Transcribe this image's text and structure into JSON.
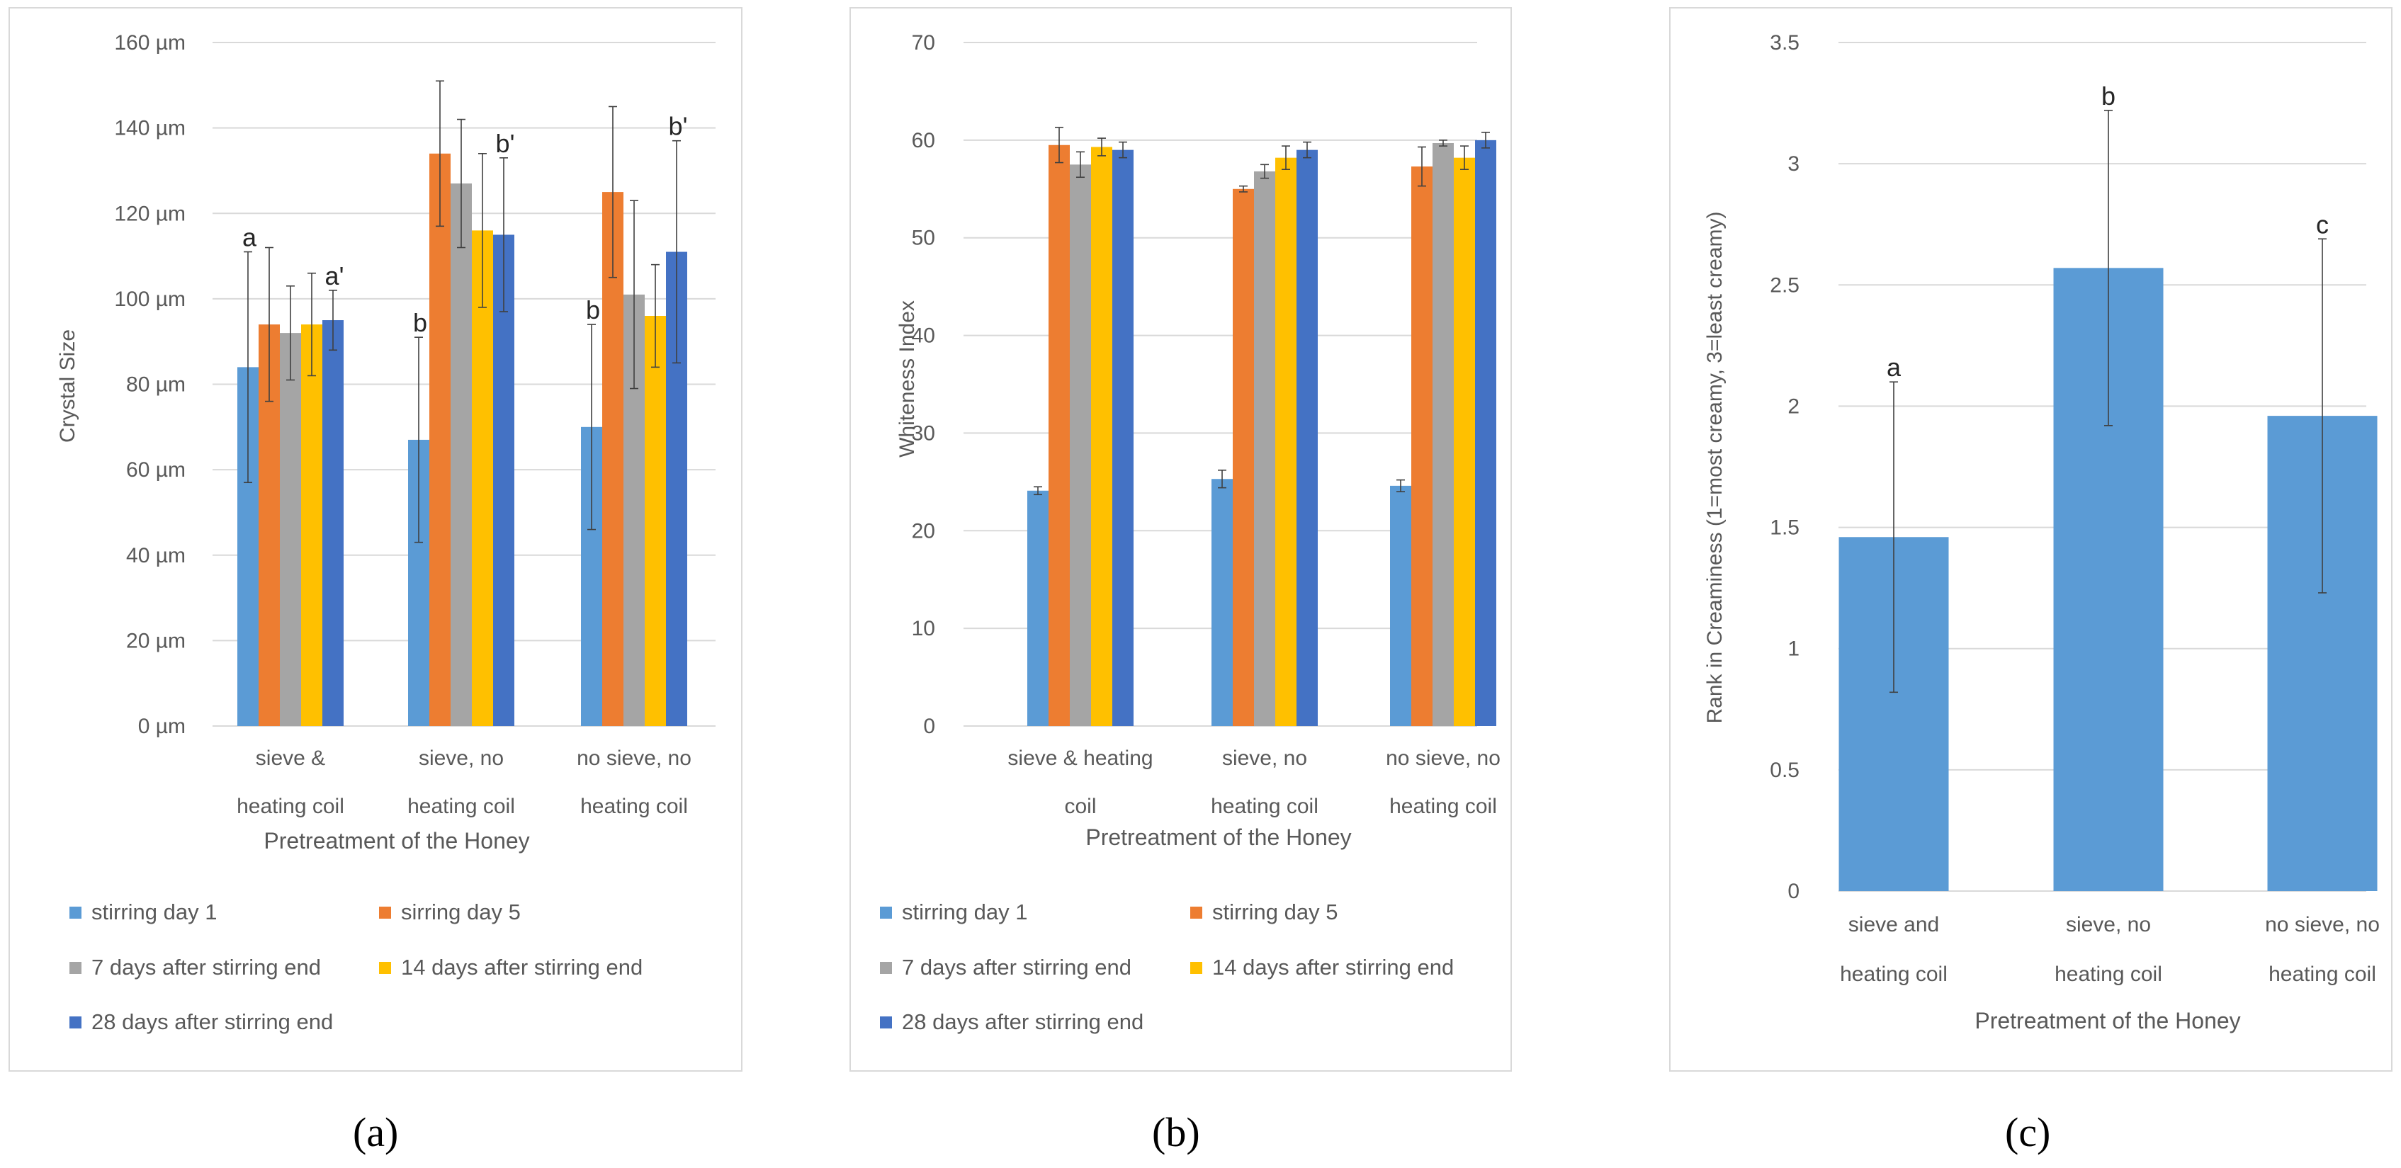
{
  "colors": {
    "s1": "#5b9bd5",
    "s2": "#ed7d31",
    "s3": "#a5a5a5",
    "s4": "#ffc000",
    "s5": "#4472c4",
    "grid": "#d9d9d9",
    "text": "#595959",
    "err": "#404040"
  },
  "captions": [
    "(a)",
    "(b)",
    "(c)"
  ],
  "chart_data": [
    {
      "type": "bar",
      "ylabel": "Crystal Size",
      "xlabel": "Pretreatment  of the Honey",
      "ylim": [
        0,
        160
      ],
      "yticks": [
        "0 µm",
        "20 µm",
        "40 µm",
        "60 µm",
        "80 µm",
        "100 µm",
        "120 µm",
        "140 µm",
        "160 µm"
      ],
      "categories": [
        [
          "sieve &",
          "heating coil"
        ],
        [
          "sieve, no",
          "heating coil"
        ],
        [
          "no sieve, no",
          "heating coil"
        ]
      ],
      "series": [
        {
          "name": "stirring day 1",
          "values": [
            84,
            67,
            70
          ],
          "err": [
            27,
            24,
            24
          ]
        },
        {
          "name": "sirring day 5",
          "values": [
            94,
            134,
            125
          ],
          "err": [
            18,
            17,
            20
          ]
        },
        {
          "name": "7 days after stirring end",
          "values": [
            92,
            127,
            101
          ],
          "err": [
            11,
            15,
            22
          ]
        },
        {
          "name": "14 days after stirring end",
          "values": [
            94,
            116,
            96
          ],
          "err": [
            12,
            18,
            12
          ]
        },
        {
          "name": "28 days after stirring end",
          "values": [
            95,
            115,
            111
          ],
          "err": [
            7,
            18,
            26
          ]
        }
      ],
      "annotations": [
        {
          "series": 0,
          "category": 0,
          "text": "a"
        },
        {
          "series": 4,
          "category": 0,
          "text": "a'"
        },
        {
          "series": 0,
          "category": 1,
          "text": "b"
        },
        {
          "series": 4,
          "category": 1,
          "text": "b'"
        },
        {
          "series": 0,
          "category": 2,
          "text": "b"
        },
        {
          "series": 4,
          "category": 2,
          "text": "b'"
        }
      ],
      "legend": [
        "stirring day 1",
        "sirring day 5",
        "7 days after stirring end",
        "14 days after stirring end",
        "28 days after stirring end"
      ]
    },
    {
      "type": "bar",
      "ylabel": "Whiteness Index",
      "xlabel": "Pretreatment  of the Honey",
      "ylim": [
        0,
        70
      ],
      "yticks": [
        "0",
        "10",
        "20",
        "30",
        "40",
        "50",
        "60",
        "70"
      ],
      "categories": [
        [
          "sieve & heating",
          "coil"
        ],
        [
          "sieve, no",
          "heating coil"
        ],
        [
          "no sieve, no",
          "heating coil"
        ]
      ],
      "series": [
        {
          "name": "stirring day 1",
          "values": [
            24.1,
            25.3,
            24.6
          ],
          "err": [
            0.4,
            0.9,
            0.6
          ]
        },
        {
          "name": "stirring day 5",
          "values": [
            59.5,
            55.0,
            57.3
          ],
          "err": [
            1.8,
            0.3,
            2.0
          ]
        },
        {
          "name": "7 days after stirring end",
          "values": [
            57.5,
            56.8,
            59.7
          ],
          "err": [
            1.3,
            0.7,
            0.3
          ]
        },
        {
          "name": "14 days after stirring end",
          "values": [
            59.3,
            58.2,
            58.2
          ],
          "err": [
            0.9,
            1.2,
            1.2
          ]
        },
        {
          "name": "28 days after stirring end",
          "values": [
            59.0,
            59.0,
            60.0
          ],
          "err": [
            0.8,
            0.8,
            0.8
          ]
        }
      ],
      "legend": [
        "stirring day 1",
        "stirring day 5",
        "7 days after stirring end",
        "14 days after stirring end",
        "28 days after stirring end"
      ]
    },
    {
      "type": "bar",
      "ylabel": "Rank in Creaminess (1=most creamy, 3=least creamy)",
      "xlabel": "Pretreatment  of the Honey",
      "ylim": [
        0,
        3.5
      ],
      "yticks": [
        "0",
        "0.5",
        "1",
        "1.5",
        "2",
        "2.5",
        "3",
        "3.5"
      ],
      "categories": [
        [
          "sieve and",
          "heating coil"
        ],
        [
          "sieve, no",
          "heating coil"
        ],
        [
          "no sieve, no",
          "heating coil"
        ]
      ],
      "series": [
        {
          "name": "rank",
          "values": [
            1.46,
            2.57,
            1.96
          ],
          "err": [
            0.64,
            0.65,
            0.73
          ]
        }
      ],
      "annotations": [
        {
          "series": 0,
          "category": 0,
          "text": "a"
        },
        {
          "series": 0,
          "category": 1,
          "text": "b"
        },
        {
          "series": 0,
          "category": 2,
          "text": "c"
        }
      ]
    }
  ]
}
